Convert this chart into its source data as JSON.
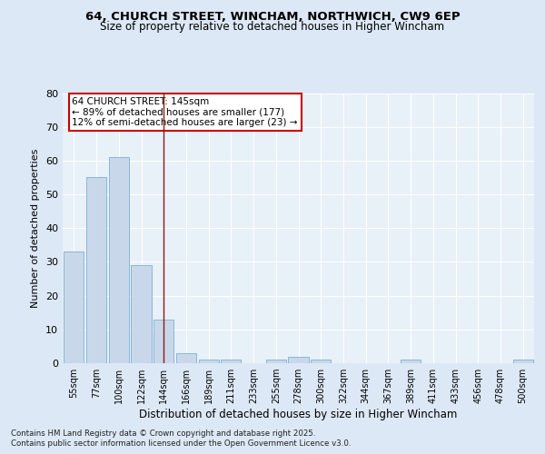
{
  "title1": "64, CHURCH STREET, WINCHAM, NORTHWICH, CW9 6EP",
  "title2": "Size of property relative to detached houses in Higher Wincham",
  "xlabel": "Distribution of detached houses by size in Higher Wincham",
  "ylabel": "Number of detached properties",
  "categories": [
    "55sqm",
    "77sqm",
    "100sqm",
    "122sqm",
    "144sqm",
    "166sqm",
    "189sqm",
    "211sqm",
    "233sqm",
    "255sqm",
    "278sqm",
    "300sqm",
    "322sqm",
    "344sqm",
    "367sqm",
    "389sqm",
    "411sqm",
    "433sqm",
    "456sqm",
    "478sqm",
    "500sqm"
  ],
  "values": [
    33,
    55,
    61,
    29,
    13,
    3,
    1,
    1,
    0,
    1,
    2,
    1,
    0,
    0,
    0,
    1,
    0,
    0,
    0,
    0,
    1
  ],
  "bar_color": "#c8d8ea",
  "bar_edge_color": "#7bafd4",
  "vline_x": 4.0,
  "vline_color": "#8b1a1a",
  "annotation_title": "64 CHURCH STREET: 145sqm",
  "annotation_line2": "← 89% of detached houses are smaller (177)",
  "annotation_line3": "12% of semi-detached houses are larger (23) →",
  "annotation_box_color": "#ffffff",
  "annotation_box_edge": "#cc0000",
  "ylim": [
    0,
    80
  ],
  "yticks": [
    0,
    10,
    20,
    30,
    40,
    50,
    60,
    70,
    80
  ],
  "footer1": "Contains HM Land Registry data © Crown copyright and database right 2025.",
  "footer2": "Contains public sector information licensed under the Open Government Licence v3.0.",
  "background_color": "#dce8f5",
  "plot_bg_color": "#e8f0f8",
  "grid_color": "#ffffff"
}
